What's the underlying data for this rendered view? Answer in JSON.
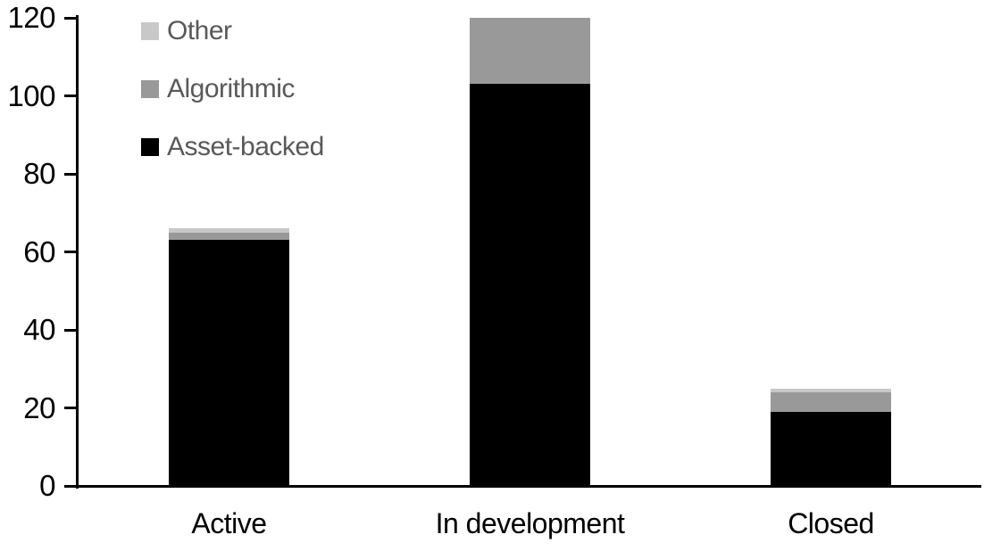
{
  "chart_data": {
    "type": "bar",
    "stacked": true,
    "title": "",
    "xlabel": "",
    "ylabel": "",
    "categories": [
      "Active",
      "In development",
      "Closed"
    ],
    "series": [
      {
        "name": "Asset-backed",
        "color": "#000000",
        "values": [
          63,
          103,
          19
        ]
      },
      {
        "name": "Algorithmic",
        "color": "#999999",
        "values": [
          2,
          17,
          5
        ]
      },
      {
        "name": "Other",
        "color": "#c8c8c8",
        "values": [
          1,
          0,
          1
        ]
      }
    ],
    "category_totals": [
      66,
      120,
      25
    ],
    "ylim": [
      0,
      120
    ],
    "yticks": [
      0,
      20,
      40,
      60,
      80,
      100,
      120
    ],
    "grid": false,
    "legend_position": "top-left",
    "legend_order": [
      "Other",
      "Algorithmic",
      "Asset-backed"
    ],
    "axis_color": "#000000",
    "tick_label_color": "#000000",
    "category_label_color": "#000000",
    "legend_text_color": "#595959"
  }
}
